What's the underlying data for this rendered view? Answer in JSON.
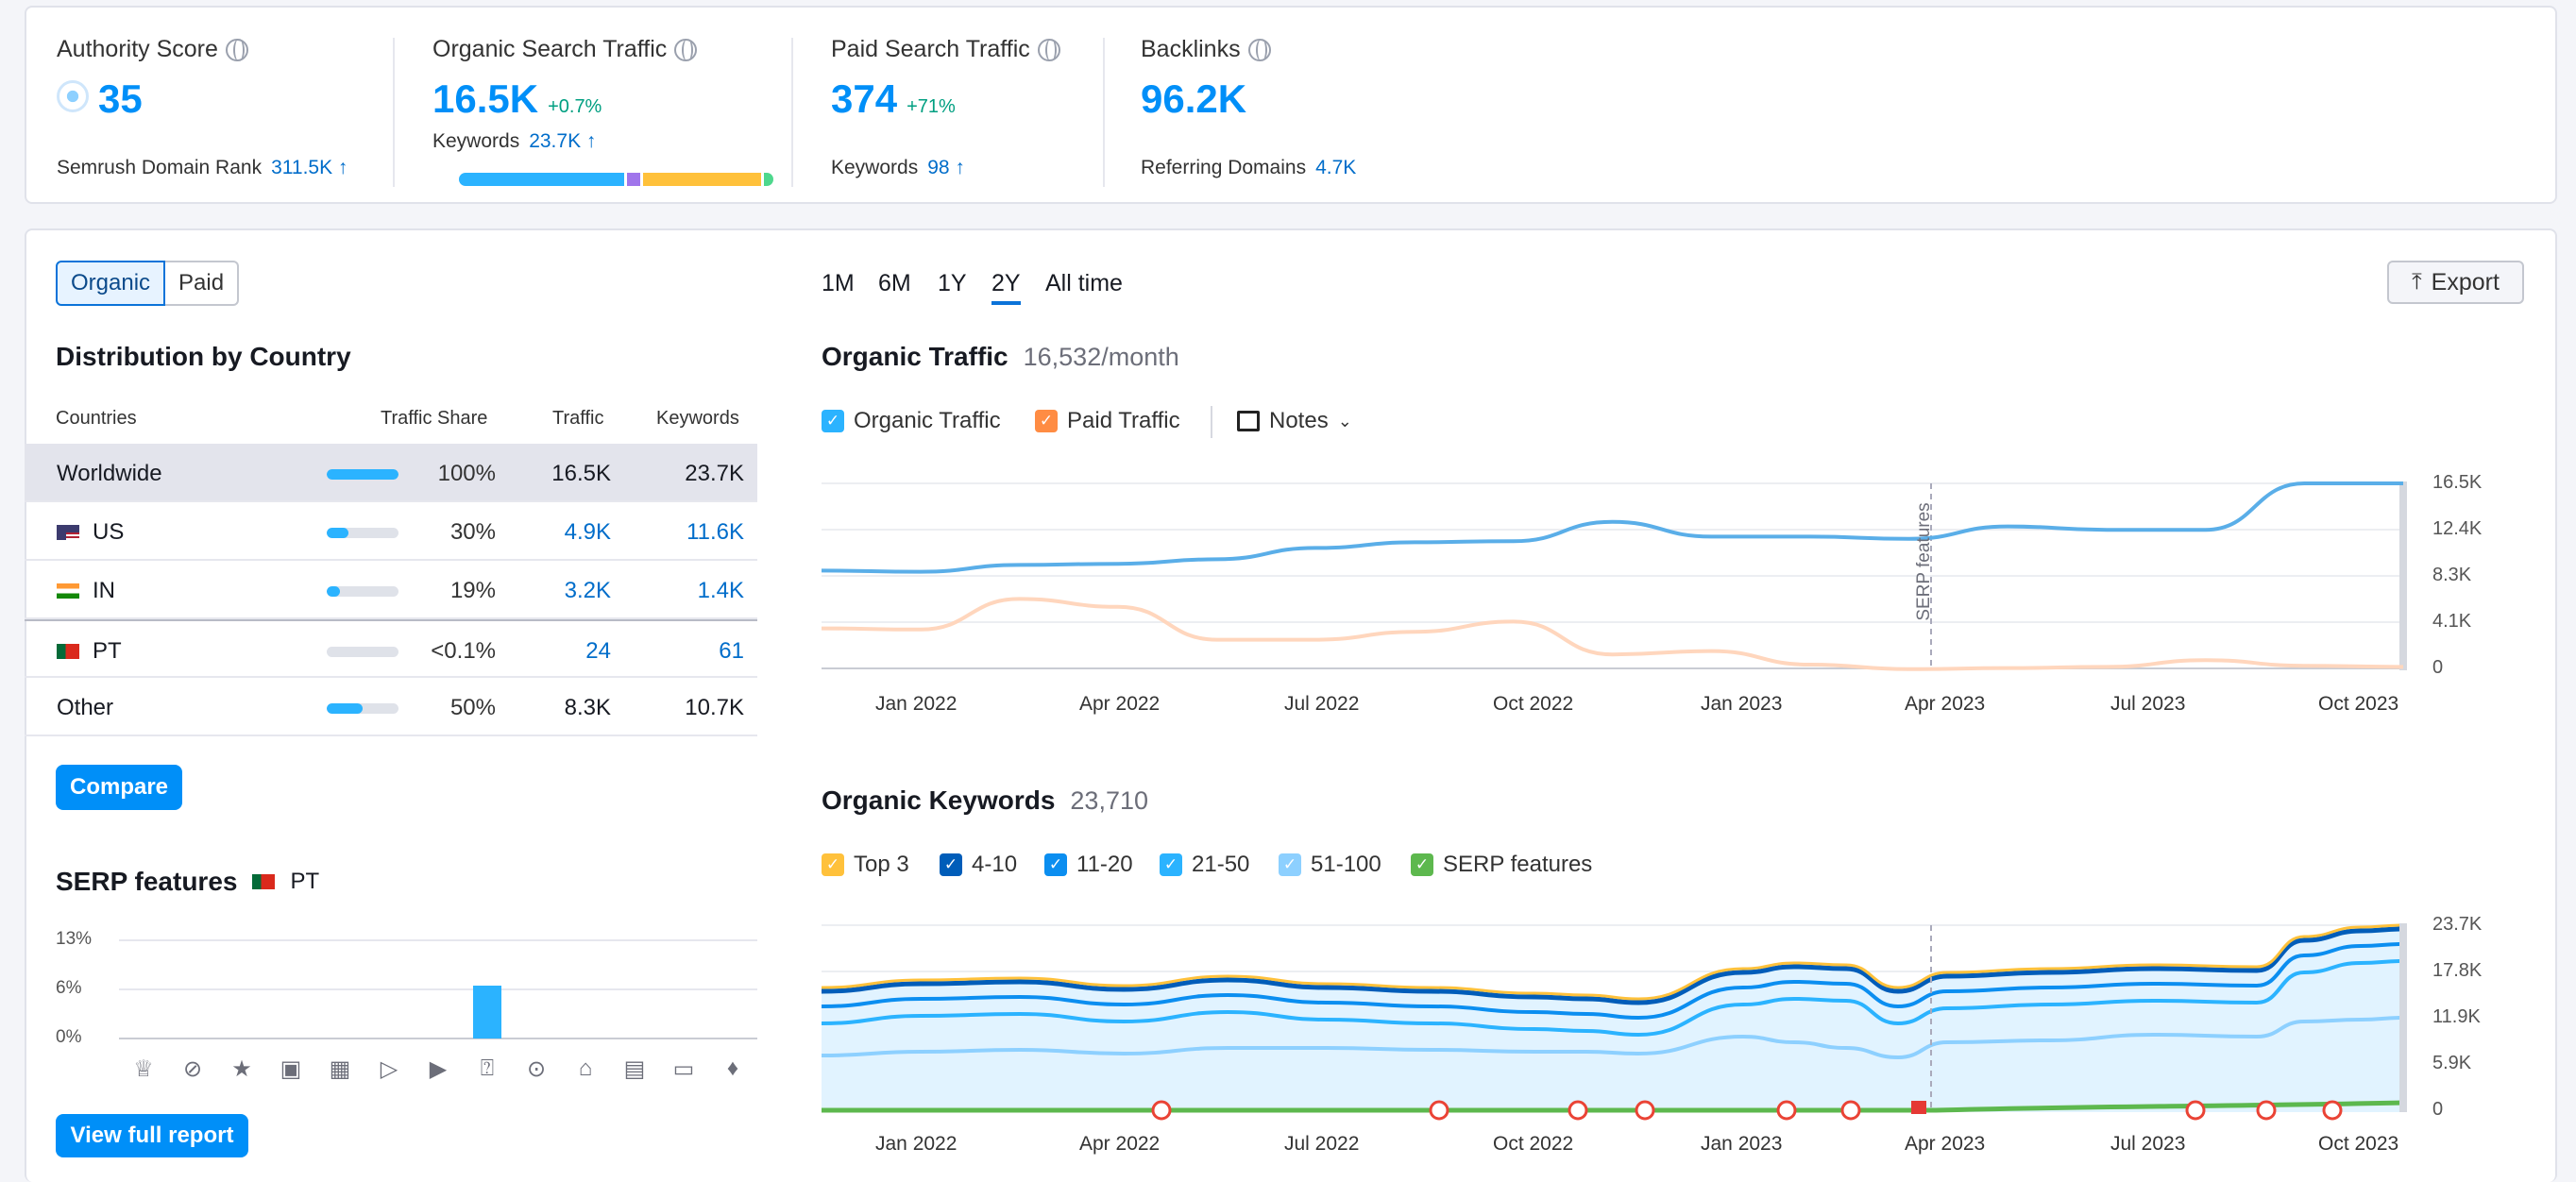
{
  "metrics": {
    "authority": {
      "label": "Authority Score",
      "value": "35",
      "sub_label": "Semrush Domain Rank",
      "sub_value": "311.5K ↑"
    },
    "organic": {
      "label": "Organic Search Traffic",
      "value": "16.5K",
      "delta": "+0.7%",
      "sub_label": "Keywords",
      "sub_value": "23.7K ↑",
      "segments": [
        {
          "color": "#2bb3ff",
          "share": 0.53
        },
        {
          "color": "#a075eb",
          "share": 0.05
        },
        {
          "color": "#ffc13b",
          "share": 0.38
        },
        {
          "color": "#4ed88d",
          "share": 0.04
        }
      ]
    },
    "paid": {
      "label": "Paid Search Traffic",
      "value": "374",
      "delta": "+71%",
      "sub_label": "Keywords",
      "sub_value": "98 ↑"
    },
    "backlinks": {
      "label": "Backlinks",
      "value": "96.2K",
      "sub_label": "Referring Domains",
      "sub_value": "4.7K"
    }
  },
  "toggle": {
    "organic": "Organic",
    "paid": "Paid"
  },
  "distribution": {
    "title": "Distribution by Country",
    "headers": {
      "countries": "Countries",
      "share": "Traffic Share",
      "traffic": "Traffic",
      "keywords": "Keywords"
    },
    "rows": [
      {
        "name": "Worldwide",
        "share": "100%",
        "share_fraction": 1.0,
        "traffic": "16.5K",
        "keywords": "23.7K"
      },
      {
        "name": "US",
        "share": "30%",
        "share_fraction": 0.3,
        "traffic": "4.9K",
        "keywords": "11.6K"
      },
      {
        "name": "IN",
        "share": "19%",
        "share_fraction": 0.19,
        "traffic": "3.2K",
        "keywords": "1.4K"
      },
      {
        "name": "PT",
        "share": "<0.1%",
        "share_fraction": 0.0,
        "traffic": "24",
        "keywords": "61"
      },
      {
        "name": "Other",
        "share": "50%",
        "share_fraction": 0.5,
        "traffic": "8.3K",
        "keywords": "10.7K"
      }
    ],
    "compare_label": "Compare"
  },
  "serp": {
    "title": "SERP features",
    "country": "PT",
    "y_ticks": [
      "13%",
      "6%",
      "0%"
    ],
    "icons": [
      "crown-icon",
      "link-icon",
      "star-icon",
      "image-icon",
      "gallery-icon",
      "video-icon",
      "video-box-icon",
      "faq-icon",
      "location-icon",
      "academic-icon",
      "news-icon",
      "briefcase-icon",
      "twitter-icon"
    ],
    "values_percent": [
      0,
      0,
      0,
      0,
      0,
      0,
      0,
      7,
      0,
      0,
      0,
      0,
      0
    ],
    "report_label": "View full report"
  },
  "periods": [
    "1M",
    "6M",
    "1Y",
    "2Y",
    "All time"
  ],
  "active_period": "2Y",
  "export_label": "Export",
  "traffic_chart": {
    "title": "Organic Traffic",
    "value": "16,532/month",
    "legend": {
      "organic": "Organic Traffic",
      "paid": "Paid Traffic",
      "notes": "Notes"
    },
    "annotation": "SERP features",
    "x_ticks": [
      "Jan 2022",
      "Apr 2022",
      "Jul 2022",
      "Oct 2022",
      "Jan 2023",
      "Apr 2023",
      "Jul 2023",
      "Oct 2023"
    ],
    "y_ticks": [
      "16.5K",
      "12.4K",
      "8.3K",
      "4.1K",
      "0"
    ]
  },
  "chart_data": {
    "type": "line",
    "x": [
      "Nov 2021",
      "Jan 2022",
      "Feb 2022",
      "Apr 2022",
      "May 2022",
      "Jul 2022",
      "Aug 2022",
      "Oct 2022",
      "Nov 2022",
      "Jan 2023",
      "Feb 2023",
      "Apr 2023",
      "May 2023",
      "Jul 2023",
      "Aug 2023",
      "Oct 2023",
      "Nov 2023"
    ],
    "series": [
      {
        "name": "Organic Traffic",
        "values": [
          8800,
          8700,
          9300,
          9400,
          9800,
          10800,
          11300,
          11400,
          13100,
          11800,
          11800,
          11600,
          12700,
          12400,
          12400,
          16500,
          16500
        ]
      },
      {
        "name": "Paid Traffic",
        "values": [
          3700,
          3600,
          6300,
          5600,
          2700,
          2700,
          3400,
          4300,
          1400,
          1700,
          500,
          100,
          200,
          300,
          900,
          400,
          300
        ]
      }
    ],
    "ylim": [
      0,
      16500
    ]
  },
  "keywords_chart": {
    "title": "Organic Keywords",
    "value": "23,710",
    "legend": [
      {
        "label": "Top 3",
        "color": "#ffc13b"
      },
      {
        "label": "4-10",
        "color": "#005db9"
      },
      {
        "label": "11-20",
        "color": "#0b8ef0"
      },
      {
        "label": "21-50",
        "color": "#2bb3ff"
      },
      {
        "label": "51-100",
        "color": "#8dd0ff"
      },
      {
        "label": "SERP features",
        "color": "#5db84e"
      }
    ],
    "x_ticks": [
      "Jan 2022",
      "Apr 2022",
      "Jul 2022",
      "Oct 2022",
      "Jan 2023",
      "Apr 2023",
      "Jul 2023",
      "Oct 2023"
    ],
    "y_ticks": [
      "23.7K",
      "17.8K",
      "11.9K",
      "5.9K",
      "0"
    ]
  }
}
